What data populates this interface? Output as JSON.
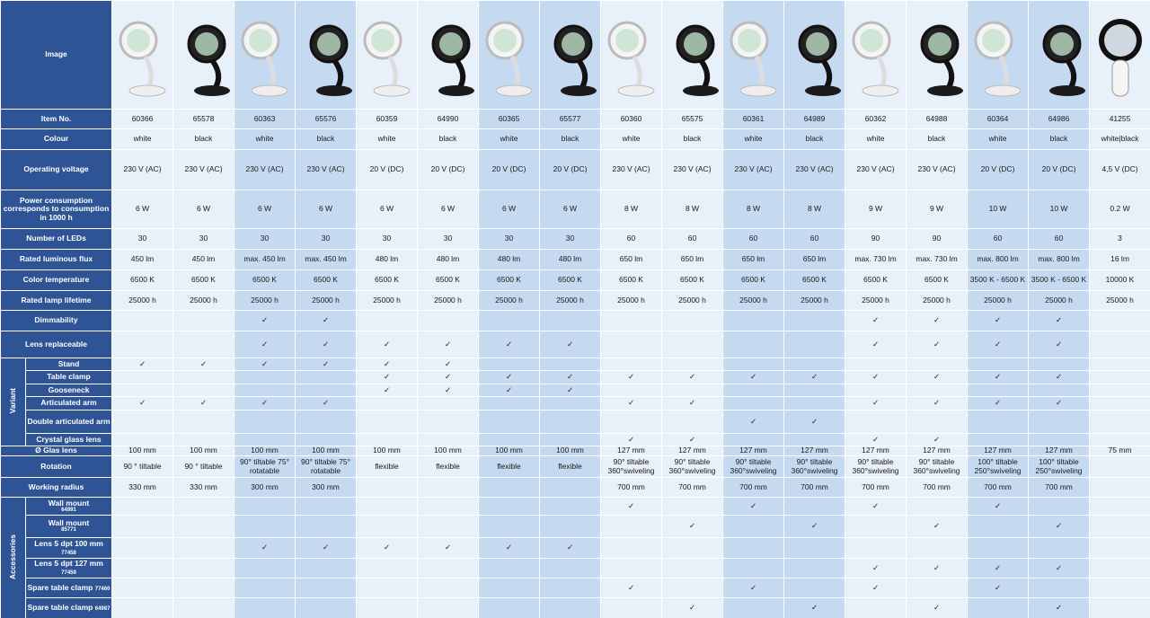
{
  "table": {
    "image_label": "Image",
    "sections": [
      {
        "label": "Item No.",
        "cells": [
          "60366",
          "65578",
          "60363",
          "65576",
          "60359",
          "64990",
          "60365",
          "65577",
          "60360",
          "65575",
          "60361",
          "64989",
          "60362",
          "64988",
          "60364",
          "64986",
          "41255"
        ]
      },
      {
        "label": "Colour",
        "cells": [
          "white",
          "black",
          "white",
          "black",
          "white",
          "black",
          "white",
          "black",
          "white",
          "black",
          "white",
          "black",
          "white",
          "black",
          "white",
          "black",
          "white|black"
        ]
      },
      {
        "label": "Operating voltage",
        "cells": [
          "230 V (AC)",
          "230 V (AC)",
          "230 V (AC)",
          "230 V (AC)",
          "20 V (DC)",
          "20 V (DC)",
          "20 V (DC)",
          "20 V (DC)",
          "230 V (AC)",
          "230 V (AC)",
          "230 V (AC)",
          "230 V (AC)",
          "230 V (AC)",
          "230 V (AC)",
          "20 V (DC)",
          "20 V (DC)",
          "4,5 V (DC)"
        ]
      },
      {
        "label": "Power consumption corresponds to consumption in 1000 h",
        "cells": [
          "6 W",
          "6 W",
          "6 W",
          "6 W",
          "6 W",
          "6 W",
          "6 W",
          "6 W",
          "8 W",
          "8 W",
          "8 W",
          "8 W",
          "9 W",
          "9 W",
          "10 W",
          "10 W",
          "0.2 W"
        ]
      },
      {
        "label": "Number of LEDs",
        "cells": [
          "30",
          "30",
          "30",
          "30",
          "30",
          "30",
          "30",
          "30",
          "60",
          "60",
          "60",
          "60",
          "90",
          "90",
          "60",
          "60",
          "3"
        ]
      },
      {
        "label": "Rated luminous flux",
        "cells": [
          "450 lm",
          "450 lm",
          "max. 450 lm",
          "max. 450 lm",
          "480 lm",
          "480 lm",
          "480 lm",
          "480 lm",
          "650 lm",
          "650 lm",
          "650 lm",
          "650 lm",
          "max. 730 lm",
          "max. 730 lm",
          "max. 800 lm",
          "max. 800 lm",
          "16 lm"
        ]
      },
      {
        "label": "Color temperature",
        "cells": [
          "6500 K",
          "6500 K",
          "6500 K",
          "6500 K",
          "6500 K",
          "6500 K",
          "6500 K",
          "6500 K",
          "6500 K",
          "6500 K",
          "6500 K",
          "6500 K",
          "6500 K",
          "6500 K",
          "3500 K - 6500 K",
          "3500 K - 6500 K",
          "10000 K"
        ]
      },
      {
        "label": "Rated lamp lifetime",
        "cells": [
          "25000 h",
          "25000 h",
          "25000 h",
          "25000 h",
          "25000 h",
          "25000 h",
          "25000 h",
          "25000 h",
          "25000 h",
          "25000 h",
          "25000 h",
          "25000 h",
          "25000 h",
          "25000 h",
          "25000 h",
          "25000 h",
          "25000 h"
        ]
      },
      {
        "label": "Dimmability",
        "cells": [
          null,
          null,
          "✓",
          "✓",
          null,
          null,
          null,
          null,
          null,
          null,
          null,
          null,
          "✓",
          "✓",
          "✓",
          "✓",
          null
        ]
      },
      {
        "label": "Lens replaceable",
        "cells": [
          null,
          null,
          "✓",
          "✓",
          "✓",
          "✓",
          "✓",
          "✓",
          null,
          null,
          null,
          null,
          "✓",
          "✓",
          "✓",
          "✓",
          null
        ]
      },
      {
        "group": "Variant",
        "rows": [
          {
            "label": "Stand",
            "cells": [
              "✓",
              "✓",
              "✓",
              "✓",
              "✓",
              "✓",
              null,
              null,
              null,
              null,
              null,
              null,
              null,
              null,
              null,
              null,
              null
            ]
          },
          {
            "label": "Table clamp",
            "cells": [
              null,
              null,
              null,
              null,
              "✓",
              "✓",
              "✓",
              "✓",
              "✓",
              "✓",
              "✓",
              "✓",
              "✓",
              "✓",
              "✓",
              "✓",
              null
            ]
          },
          {
            "label": "Gooseneck",
            "cells": [
              null,
              null,
              null,
              null,
              "✓",
              "✓",
              "✓",
              "✓",
              null,
              null,
              null,
              null,
              null,
              null,
              null,
              null,
              null
            ]
          },
          {
            "label": "Articulated arm",
            "cells": [
              "✓",
              "✓",
              "✓",
              "✓",
              null,
              null,
              null,
              null,
              "✓",
              "✓",
              null,
              null,
              "✓",
              "✓",
              "✓",
              "✓",
              null
            ]
          },
          {
            "label": "Double articulated arm",
            "cells": [
              null,
              null,
              null,
              null,
              null,
              null,
              null,
              null,
              null,
              null,
              "✓",
              "✓",
              null,
              null,
              null,
              null,
              null
            ]
          },
          {
            "label": "Crystal glass lens",
            "cells": [
              null,
              null,
              null,
              null,
              null,
              null,
              null,
              null,
              "✓",
              "✓",
              null,
              null,
              "✓",
              "✓",
              null,
              null,
              null
            ]
          }
        ]
      },
      {
        "label": "Ø Glas lens",
        "cells": [
          "100 mm",
          "100 mm",
          "100 mm",
          "100 mm",
          "100 mm",
          "100 mm",
          "100 mm",
          "100 mm",
          "127 mm",
          "127 mm",
          "127 mm",
          "127 mm",
          "127 mm",
          "127 mm",
          "127 mm",
          "127 mm",
          "75 mm"
        ]
      },
      {
        "label": "Rotation",
        "cells": [
          "90 ° tiltable",
          "90 ° tiltable",
          "90° tiltable 75° rotatable",
          "90° tiltable 75° rotatable",
          "flexible",
          "flexible",
          "flexible",
          "flexible",
          "90° tiltable 360°swiveling",
          "90° tiltable 360°swiveling",
          "90° tiltable 360°swiveling",
          "90° tiltable 360°swiveling",
          "90° tiltable 360°swiveling",
          "90° tiltable 360°swiveling",
          "100° tiltable 250°swiveling",
          "100° tiltable 250°swiveling",
          null
        ]
      },
      {
        "label": "Working radius",
        "cells": [
          "330 mm",
          "330 mm",
          "300 mm",
          "300 mm",
          null,
          null,
          null,
          null,
          "700 mm",
          "700 mm",
          "700 mm",
          "700 mm",
          "700 mm",
          "700 mm",
          "700 mm",
          "700 mm",
          null
        ]
      },
      {
        "group": "Accessories",
        "rows": [
          {
            "label": "Wall mount",
            "code": "64991",
            "cells": [
              null,
              null,
              null,
              null,
              null,
              null,
              null,
              null,
              "✓",
              null,
              "✓",
              null,
              "✓",
              null,
              "✓",
              null,
              null
            ]
          },
          {
            "label": "Wall mount",
            "code": "85771",
            "cells": [
              null,
              null,
              null,
              null,
              null,
              null,
              null,
              null,
              null,
              "✓",
              null,
              "✓",
              null,
              "✓",
              null,
              "✓",
              null
            ]
          },
          {
            "label": "Lens 5 dpt 100 mm",
            "code": "77458",
            "cells": [
              null,
              null,
              "✓",
              "✓",
              "✓",
              "✓",
              "✓",
              "✓",
              null,
              null,
              null,
              null,
              null,
              null,
              null,
              null,
              null
            ]
          },
          {
            "label": "Lens 5 dpt 127 mm",
            "code": "77459",
            "cells": [
              null,
              null,
              null,
              null,
              null,
              null,
              null,
              null,
              null,
              null,
              null,
              null,
              "✓",
              "✓",
              "✓",
              "✓",
              null
            ]
          },
          {
            "label": "Spare table clamp",
            "code": "77460",
            "cells": [
              null,
              null,
              null,
              null,
              null,
              null,
              null,
              null,
              "✓",
              null,
              "✓",
              null,
              "✓",
              null,
              "✓",
              null,
              null
            ]
          },
          {
            "label": "Spare table clamp",
            "code": "64987",
            "cells": [
              null,
              null,
              null,
              null,
              null,
              null,
              null,
              null,
              null,
              "✓",
              null,
              "✓",
              null,
              "✓",
              null,
              "✓",
              null
            ]
          }
        ]
      }
    ]
  }
}
